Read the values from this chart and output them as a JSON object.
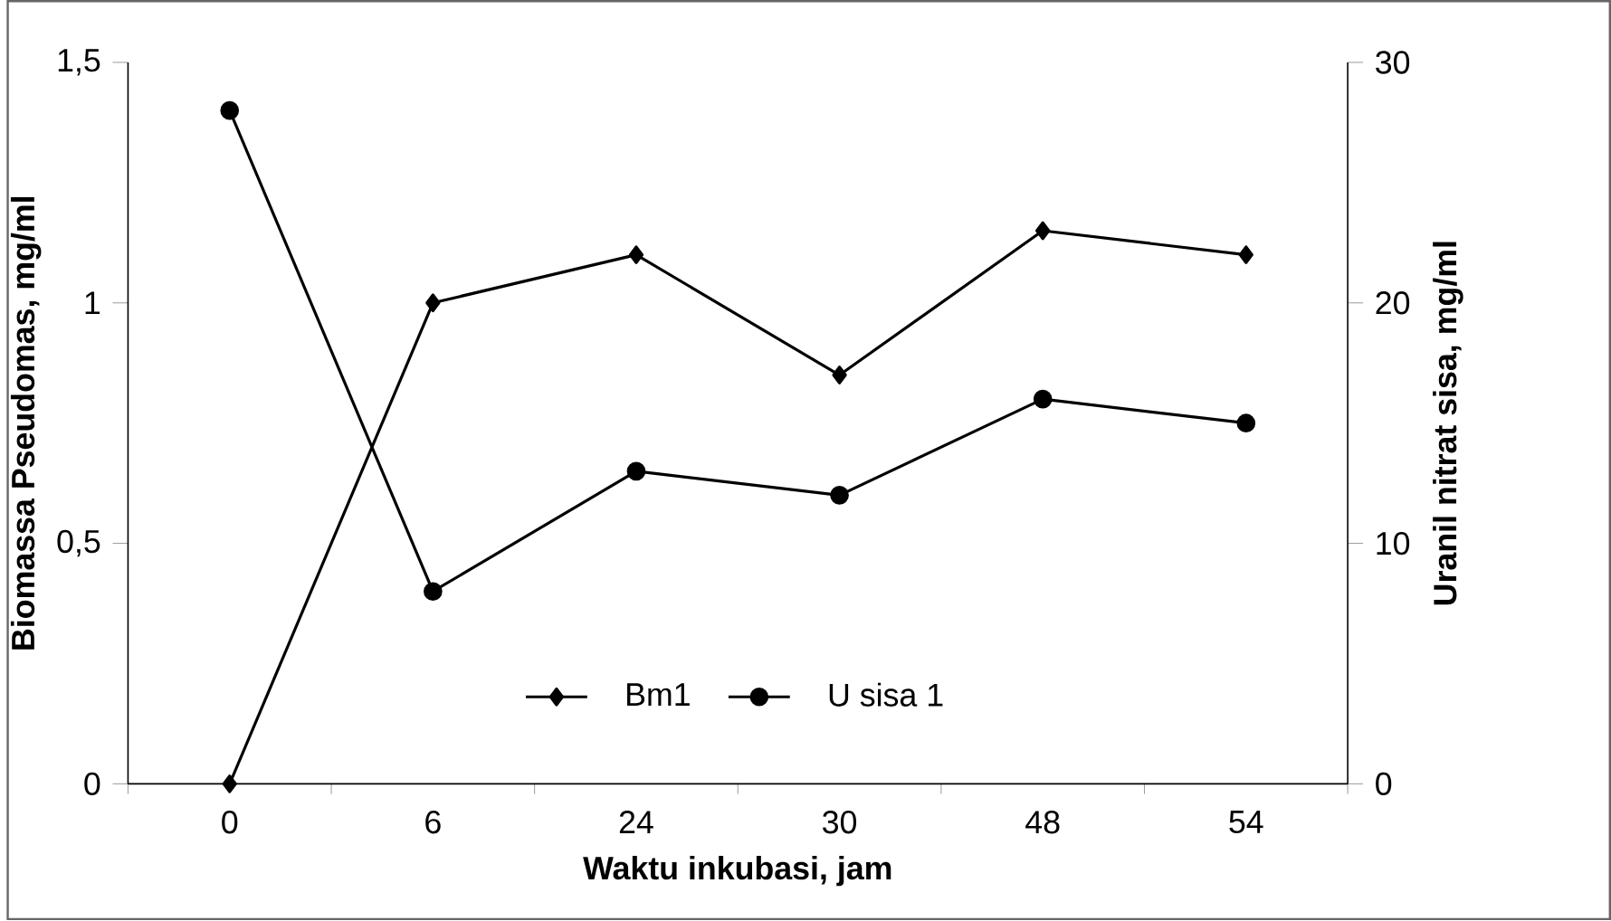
{
  "chart_data": {
    "type": "line",
    "xlabel": "Waktu inkubasi,  jam",
    "ylabel": "Biomassa  Pseudomas, mg/ml",
    "y2label": "Uranil  nitrat sisa, mg/ml",
    "categories": [
      "0",
      "6",
      "24",
      "30",
      "48",
      "54"
    ],
    "series": [
      {
        "name": "Bm1",
        "color": "#000000",
        "marker": "diamond",
        "values": [
          0,
          1.0,
          1.1,
          0.85,
          1.15,
          1.1
        ]
      },
      {
        "name": "U sisa 1",
        "color": "#000000",
        "marker": "circle",
        "axis": "y2",
        "values": [
          28,
          8,
          13,
          12,
          16,
          15
        ]
      }
    ],
    "ylim": [
      0,
      1.5
    ],
    "yticks": [
      0,
      {
        "value": 0.5,
        "label": "0,5"
      },
      1,
      {
        "value": 1.5,
        "label": "1,5"
      }
    ],
    "y2lim": [
      0,
      30
    ],
    "y2ticks": [
      0,
      10,
      20,
      30
    ],
    "legend": "bottom",
    "grid": false
  }
}
